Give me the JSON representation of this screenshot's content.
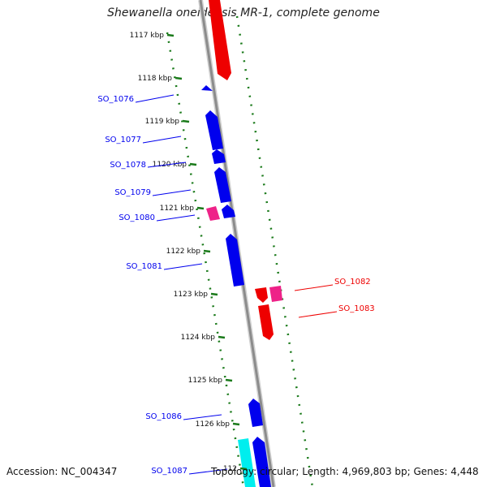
{
  "title": "Shewanella oneidensis MR-1, complete genome",
  "footer": {
    "accession": "Accession: NC_004347",
    "topology": "Topology: circular; Length: 4,969,803 bp; Genes: 4,448"
  },
  "colors": {
    "backbone": "#8c8c8c",
    "forward_gene": "#0000ee",
    "reverse_gene": "#ee0000",
    "rna": "#ee2288",
    "other": "#00eeee",
    "tick": "#1a7a1a"
  },
  "ticks": [
    {
      "label": "1117 kbp"
    },
    {
      "label": "1118 kbp"
    },
    {
      "label": "1119 kbp"
    },
    {
      "label": "1120 kbp"
    },
    {
      "label": "1121 kbp"
    },
    {
      "label": "1122 kbp"
    },
    {
      "label": "1123 kbp"
    },
    {
      "label": "1124 kbp"
    },
    {
      "label": "1125 kbp"
    },
    {
      "label": "1126 kbp"
    },
    {
      "label": "112"
    }
  ],
  "gene_labels": [
    {
      "text": "SO_1076",
      "strand": "forward"
    },
    {
      "text": "SO_1077",
      "strand": "forward"
    },
    {
      "text": "SO_1078",
      "strand": "forward"
    },
    {
      "text": "SO_1079",
      "strand": "forward"
    },
    {
      "text": "SO_1080",
      "strand": "forward"
    },
    {
      "text": "SO_1081",
      "strand": "forward"
    },
    {
      "text": "SO_1082",
      "strand": "reverse"
    },
    {
      "text": "SO_1083",
      "strand": "reverse"
    },
    {
      "text": "SO_1086",
      "strand": "forward"
    },
    {
      "text": "SO_1087",
      "strand": "forward"
    }
  ]
}
